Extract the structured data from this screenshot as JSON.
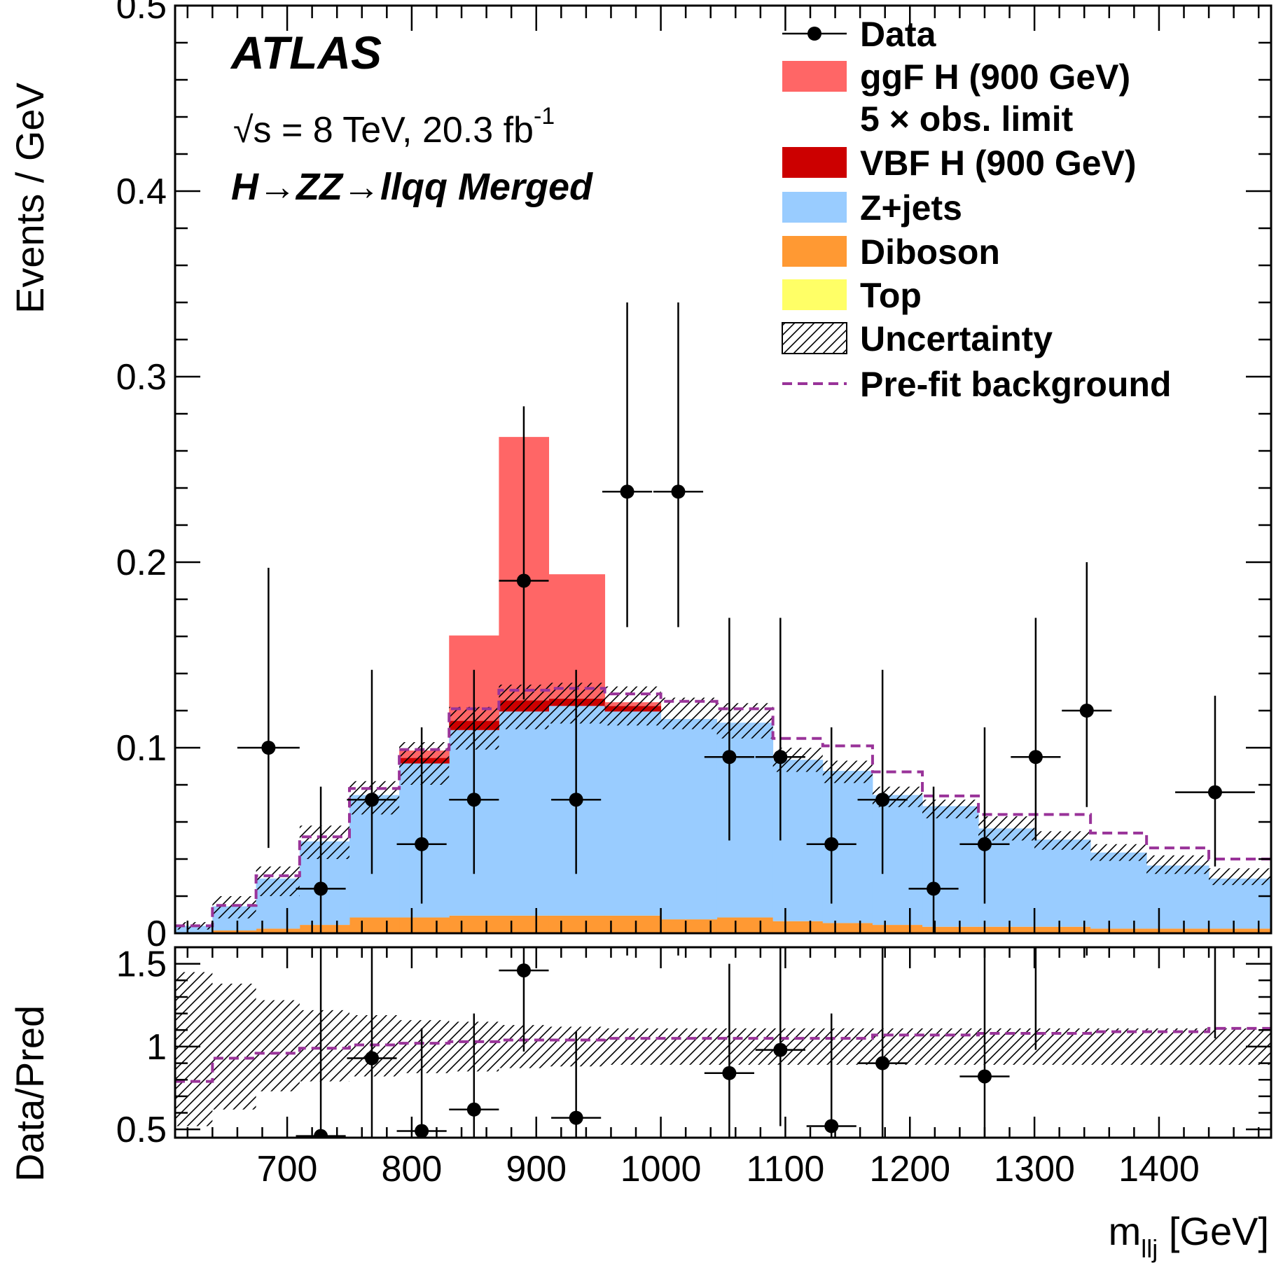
{
  "chart_data": [
    {
      "type": "histogram",
      "panel": "main",
      "ylabel": "Events /  GeV",
      "xlim": [
        610,
        1490
      ],
      "ylim": [
        0,
        0.5
      ],
      "y_ticks": [
        {
          "value": 0.5,
          "label": "0.5"
        },
        {
          "value": 0.4,
          "label": "0.4"
        },
        {
          "value": 0.3,
          "label": "0.3"
        },
        {
          "value": 0.2,
          "label": "0.2"
        },
        {
          "value": 0.1,
          "label": "0.1"
        },
        {
          "value": 0.0,
          "label": "0"
        }
      ],
      "atlas_label": "ATLAS",
      "energy_label": "√s = 8 TeV, 20.3 fb",
      "energy_label_sup": "-1",
      "channel_label": "H→ZZ→llqq Merged",
      "colors": {
        "ggF": "#ff6666",
        "VBF": "#cc0000",
        "Zjets": "#99ccff",
        "Diboson": "#ff9933",
        "Top": "#ffff66",
        "prefit": "#993399",
        "data": "#000000"
      },
      "bin_edges": [
        610,
        640,
        675,
        710,
        750,
        790,
        830,
        870,
        910,
        955,
        1000,
        1045,
        1090,
        1130,
        1170,
        1210,
        1255,
        1300,
        1345,
        1390,
        1440,
        1490
      ],
      "stack": [
        {
          "name": "Top",
          "values": [
            0.0,
            0.0005,
            0.0005,
            0.0005,
            0.0005,
            0.0005,
            0.0005,
            0.0005,
            0.0005,
            0.0005,
            0.0005,
            0.0005,
            0.0005,
            0.0005,
            0.0005,
            0.0005,
            0.0005,
            0.0005,
            0.0005,
            0.0005,
            0.0005
          ]
        },
        {
          "name": "Diboson",
          "values": [
            0.0,
            0.001,
            0.002,
            0.004,
            0.008,
            0.008,
            0.009,
            0.009,
            0.009,
            0.009,
            0.007,
            0.008,
            0.006,
            0.005,
            0.004,
            0.003,
            0.003,
            0.003,
            0.002,
            0.002,
            0.002
          ]
        },
        {
          "name": "Z+jets",
          "values": [
            0.004,
            0.013,
            0.027,
            0.045,
            0.066,
            0.083,
            0.1,
            0.11,
            0.113,
            0.11,
            0.108,
            0.105,
            0.087,
            0.082,
            0.07,
            0.065,
            0.053,
            0.047,
            0.041,
            0.034,
            0.027
          ]
        },
        {
          "name": "VBF H (900 GeV)",
          "values": [
            0.0,
            0.0,
            0.0,
            0.0,
            0.0,
            0.003,
            0.005,
            0.006,
            0.004,
            0.003,
            0.0,
            0.0,
            0.0,
            0.0,
            0.0,
            0.0,
            0.0,
            0.0,
            0.0,
            0.0,
            0.0
          ]
        },
        {
          "name": "ggF H (900 GeV)",
          "values": [
            0.0,
            0.0,
            0.0,
            0.0,
            0.0,
            0.004,
            0.046,
            0.142,
            0.067,
            0.002,
            0.0,
            0.0,
            0.0,
            0.0,
            0.0,
            0.0,
            0.0,
            0.0,
            0.0,
            0.0,
            0.0
          ]
        }
      ],
      "prefit_background": [
        0.004,
        0.015,
        0.031,
        0.052,
        0.078,
        0.099,
        0.121,
        0.131,
        0.132,
        0.129,
        0.125,
        0.121,
        0.105,
        0.101,
        0.087,
        0.074,
        0.064,
        0.064,
        0.054,
        0.046,
        0.04
      ],
      "uncertainty_band": {
        "lo": [
          0.002,
          0.008,
          0.02,
          0.04,
          0.064,
          0.08,
          0.099,
          0.11,
          0.113,
          0.112,
          0.11,
          0.105,
          0.087,
          0.081,
          0.068,
          0.062,
          0.05,
          0.045,
          0.039,
          0.032,
          0.026
        ],
        "hi": [
          0.006,
          0.02,
          0.036,
          0.058,
          0.082,
          0.103,
          0.122,
          0.134,
          0.135,
          0.133,
          0.127,
          0.124,
          0.1,
          0.093,
          0.079,
          0.072,
          0.063,
          0.055,
          0.048,
          0.042,
          0.035
        ]
      },
      "data": [
        {
          "x": 685,
          "y": 0.1,
          "xerr": [
            25,
            25
          ],
          "yerr": [
            0.054,
            0.097
          ]
        },
        {
          "x": 727,
          "y": 0.024,
          "xerr": [
            20,
            20
          ],
          "yerr": [
            0.024,
            0.055
          ]
        },
        {
          "x": 768,
          "y": 0.072,
          "xerr": [
            20,
            20
          ],
          "yerr": [
            0.04,
            0.07
          ]
        },
        {
          "x": 808,
          "y": 0.048,
          "xerr": [
            20,
            20
          ],
          "yerr": [
            0.032,
            0.063
          ]
        },
        {
          "x": 850,
          "y": 0.072,
          "xerr": [
            20,
            20
          ],
          "yerr": [
            0.04,
            0.07
          ]
        },
        {
          "x": 890,
          "y": 0.19,
          "xerr": [
            20,
            20
          ],
          "yerr": [
            0.064,
            0.094
          ]
        },
        {
          "x": 932,
          "y": 0.072,
          "xerr": [
            20,
            20
          ],
          "yerr": [
            0.04,
            0.07
          ]
        },
        {
          "x": 973,
          "y": 0.238,
          "xerr": [
            20,
            20
          ],
          "yerr": [
            0.073,
            0.102
          ]
        },
        {
          "x": 1014,
          "y": 0.238,
          "xerr": [
            20,
            20
          ],
          "yerr": [
            0.073,
            0.102
          ]
        },
        {
          "x": 1055,
          "y": 0.095,
          "xerr": [
            20,
            20
          ],
          "yerr": [
            0.045,
            0.075
          ]
        },
        {
          "x": 1096,
          "y": 0.095,
          "xerr": [
            20,
            20
          ],
          "yerr": [
            0.045,
            0.075
          ]
        },
        {
          "x": 1137,
          "y": 0.048,
          "xerr": [
            20,
            20
          ],
          "yerr": [
            0.032,
            0.063
          ]
        },
        {
          "x": 1178,
          "y": 0.072,
          "xerr": [
            20,
            20
          ],
          "yerr": [
            0.04,
            0.07
          ]
        },
        {
          "x": 1219,
          "y": 0.024,
          "xerr": [
            20,
            20
          ],
          "yerr": [
            0.024,
            0.055
          ]
        },
        {
          "x": 1260,
          "y": 0.048,
          "xerr": [
            20,
            20
          ],
          "yerr": [
            0.032,
            0.063
          ]
        },
        {
          "x": 1301,
          "y": 0.095,
          "xerr": [
            20,
            20
          ],
          "yerr": [
            0.045,
            0.075
          ]
        },
        {
          "x": 1342,
          "y": 0.12,
          "xerr": [
            20,
            20
          ],
          "yerr": [
            0.052,
            0.08
          ]
        },
        {
          "x": 1445,
          "y": 0.076,
          "xerr": [
            32,
            32
          ],
          "yerr": [
            0.04,
            0.052
          ]
        }
      ],
      "legend": [
        {
          "key": "data",
          "label": "Data",
          "style": "marker"
        },
        {
          "key": "ggF",
          "label": "ggF H (900 GeV)",
          "label2": "5 × obs. limit",
          "style": "fill",
          "color": "#ff6666"
        },
        {
          "key": "VBF",
          "label": "VBF H (900 GeV)",
          "style": "fill",
          "color": "#cc0000"
        },
        {
          "key": "Zjets",
          "label": "Z+jets",
          "style": "fill",
          "color": "#99ccff"
        },
        {
          "key": "Diboson",
          "label": "Diboson",
          "style": "fill",
          "color": "#ff9933"
        },
        {
          "key": "Top",
          "label": "Top",
          "style": "fill",
          "color": "#ffff66"
        },
        {
          "key": "unc",
          "label": "Uncertainty",
          "style": "hatch"
        },
        {
          "key": "prefit",
          "label": "Pre-fit background",
          "style": "dashed",
          "color": "#993399"
        }
      ]
    },
    {
      "type": "ratio",
      "panel": "ratio",
      "ylabel": "Data/Pred",
      "xlabel": "m",
      "xlabel_sub": "llj",
      "xlabel_unit": " [GeV]",
      "xlim": [
        610,
        1490
      ],
      "ylim": [
        0.45,
        1.6
      ],
      "y_ticks": [
        {
          "value": 1.5,
          "label": "1.5"
        },
        {
          "value": 1.0,
          "label": "1"
        },
        {
          "value": 0.5,
          "label": "0.5"
        }
      ],
      "x_ticks": [
        {
          "value": 700,
          "label": "700"
        },
        {
          "value": 800,
          "label": "800"
        },
        {
          "value": 900,
          "label": "900"
        },
        {
          "value": 1000,
          "label": "1000"
        },
        {
          "value": 1100,
          "label": "1100"
        },
        {
          "value": 1200,
          "label": "1200"
        },
        {
          "value": 1300,
          "label": "1300"
        },
        {
          "value": 1400,
          "label": "1400"
        }
      ],
      "bin_edges": [
        610,
        640,
        675,
        710,
        750,
        790,
        830,
        870,
        910,
        955,
        1000,
        1045,
        1090,
        1130,
        1170,
        1210,
        1255,
        1300,
        1345,
        1390,
        1440,
        1490
      ],
      "uncertainty_band": {
        "lo": [
          0.52,
          0.62,
          0.73,
          0.79,
          0.82,
          0.84,
          0.85,
          0.87,
          0.88,
          0.89,
          0.89,
          0.89,
          0.89,
          0.89,
          0.89,
          0.89,
          0.89,
          0.89,
          0.89,
          0.89,
          0.89
        ],
        "hi": [
          1.45,
          1.38,
          1.28,
          1.22,
          1.19,
          1.16,
          1.15,
          1.13,
          1.12,
          1.11,
          1.11,
          1.11,
          1.11,
          1.11,
          1.11,
          1.11,
          1.11,
          1.11,
          1.11,
          1.11,
          1.11
        ]
      },
      "prefit_ratio": [
        0.79,
        0.93,
        0.96,
        0.99,
        1.01,
        1.02,
        1.03,
        1.04,
        1.04,
        1.05,
        1.05,
        1.05,
        1.05,
        1.05,
        1.07,
        1.07,
        1.08,
        1.08,
        1.09,
        1.09,
        1.11
      ],
      "data": [
        {
          "x": 727,
          "y": 0.46,
          "xerr": [
            20,
            20
          ],
          "yerr": [
            0.46,
            1.14
          ]
        },
        {
          "x": 768,
          "y": 0.93,
          "xerr": [
            20,
            20
          ],
          "yerr": [
            0.52,
            0.67
          ]
        },
        {
          "x": 808,
          "y": 0.49,
          "xerr": [
            20,
            20
          ],
          "yerr": [
            0.33,
            0.62
          ]
        },
        {
          "x": 850,
          "y": 0.62,
          "xerr": [
            20,
            20
          ],
          "yerr": [
            0.34,
            0.58
          ]
        },
        {
          "x": 890,
          "y": 1.46,
          "xerr": [
            20,
            20
          ],
          "yerr": [
            0.49,
            0.14
          ]
        },
        {
          "x": 932,
          "y": 0.57,
          "xerr": [
            20,
            20
          ],
          "yerr": [
            0.33,
            0.52
          ]
        },
        {
          "x": 1055,
          "y": 0.84,
          "xerr": [
            20,
            20
          ],
          "yerr": [
            0.4,
            0.66
          ]
        },
        {
          "x": 1096,
          "y": 0.98,
          "xerr": [
            20,
            20
          ],
          "yerr": [
            0.46,
            0.62
          ]
        },
        {
          "x": 1137,
          "y": 0.52,
          "xerr": [
            20,
            20
          ],
          "yerr": [
            0.35,
            0.68
          ]
        },
        {
          "x": 1178,
          "y": 0.9,
          "xerr": [
            20,
            20
          ],
          "yerr": [
            0.45,
            0.7
          ]
        },
        {
          "x": 1260,
          "y": 0.82,
          "xerr": [
            20,
            20
          ],
          "yerr": [
            0.53,
            0.78
          ]
        }
      ],
      "offscale_errorbars": [
        {
          "x": 973,
          "ylo": 1.55
        },
        {
          "x": 1014,
          "ylo": 1.55
        },
        {
          "x": 1301,
          "ylo": 0.98
        },
        {
          "x": 1342,
          "ylo": 1.55
        },
        {
          "x": 1445,
          "ylo": 1.05
        }
      ]
    }
  ]
}
